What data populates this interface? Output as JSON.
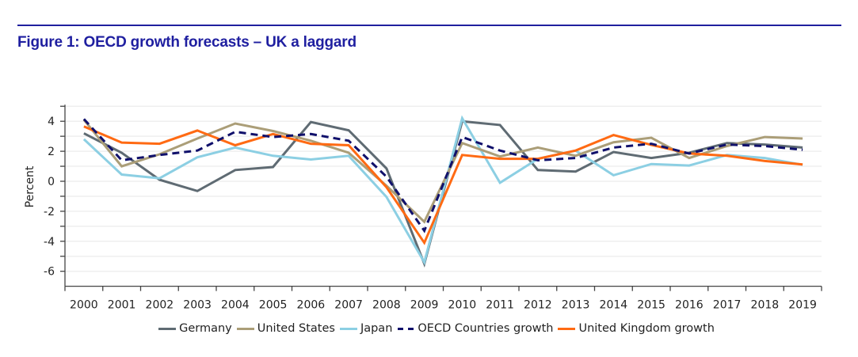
{
  "figure": {
    "title": "Figure 1: OECD growth forecasts – UK a laggard"
  },
  "chart_data": {
    "type": "line",
    "title": "Figure 1: OECD growth forecasts – UK a laggard",
    "xlabel": "",
    "ylabel": "Percent",
    "ylim": [
      -7,
      5
    ],
    "yticks": [
      4,
      2,
      0,
      -2,
      -4,
      -6
    ],
    "yticklabels": [
      "4",
      "2",
      "0",
      "-2",
      "-4",
      "-6"
    ],
    "grid": true,
    "legend_position": "bottom",
    "categories": [
      "2000",
      "2001",
      "2002",
      "2003",
      "2004",
      "2005",
      "2006",
      "2007",
      "2008",
      "2009",
      "2010",
      "2011",
      "2012",
      "2013",
      "2014",
      "2015",
      "2016",
      "2017",
      "2018",
      "2019"
    ],
    "series": [
      {
        "name": "Germany",
        "color": "#5f6b73",
        "style": "solid",
        "values": [
          3.2,
          1.9,
          0.1,
          -0.65,
          0.75,
          0.95,
          3.95,
          3.4,
          0.85,
          -5.5,
          4.0,
          3.75,
          0.75,
          0.65,
          1.95,
          1.55,
          1.9,
          2.55,
          2.45,
          2.25
        ]
      },
      {
        "name": "United States",
        "color": "#ab9e78",
        "style": "solid",
        "values": [
          4.1,
          1.0,
          1.8,
          2.85,
          3.85,
          3.35,
          2.7,
          1.9,
          -0.3,
          -2.7,
          2.55,
          1.65,
          2.25,
          1.7,
          2.6,
          2.9,
          1.55,
          2.35,
          2.95,
          2.85
        ]
      },
      {
        "name": "Japan",
        "color": "#8ccfe3",
        "style": "solid",
        "values": [
          2.8,
          0.45,
          0.2,
          1.6,
          2.25,
          1.7,
          1.45,
          1.7,
          -1.05,
          -5.4,
          4.2,
          -0.1,
          1.5,
          2.05,
          0.4,
          1.15,
          1.05,
          1.75,
          1.55,
          1.1
        ]
      },
      {
        "name": "OECD Countries growth",
        "color": "#10106b",
        "style": "dashed",
        "values": [
          4.15,
          1.4,
          1.75,
          2.05,
          3.3,
          2.95,
          3.15,
          2.7,
          0.3,
          -3.3,
          2.95,
          2.05,
          1.4,
          1.55,
          2.25,
          2.5,
          1.85,
          2.45,
          2.35,
          2.1
        ]
      },
      {
        "name": "United Kingdom growth",
        "color": "#ff6a13",
        "style": "solid",
        "values": [
          3.65,
          2.58,
          2.5,
          3.38,
          2.4,
          3.15,
          2.5,
          2.4,
          -0.4,
          -4.1,
          1.75,
          1.5,
          1.5,
          2.05,
          3.08,
          2.42,
          1.85,
          1.7,
          1.35,
          1.12
        ]
      }
    ]
  }
}
